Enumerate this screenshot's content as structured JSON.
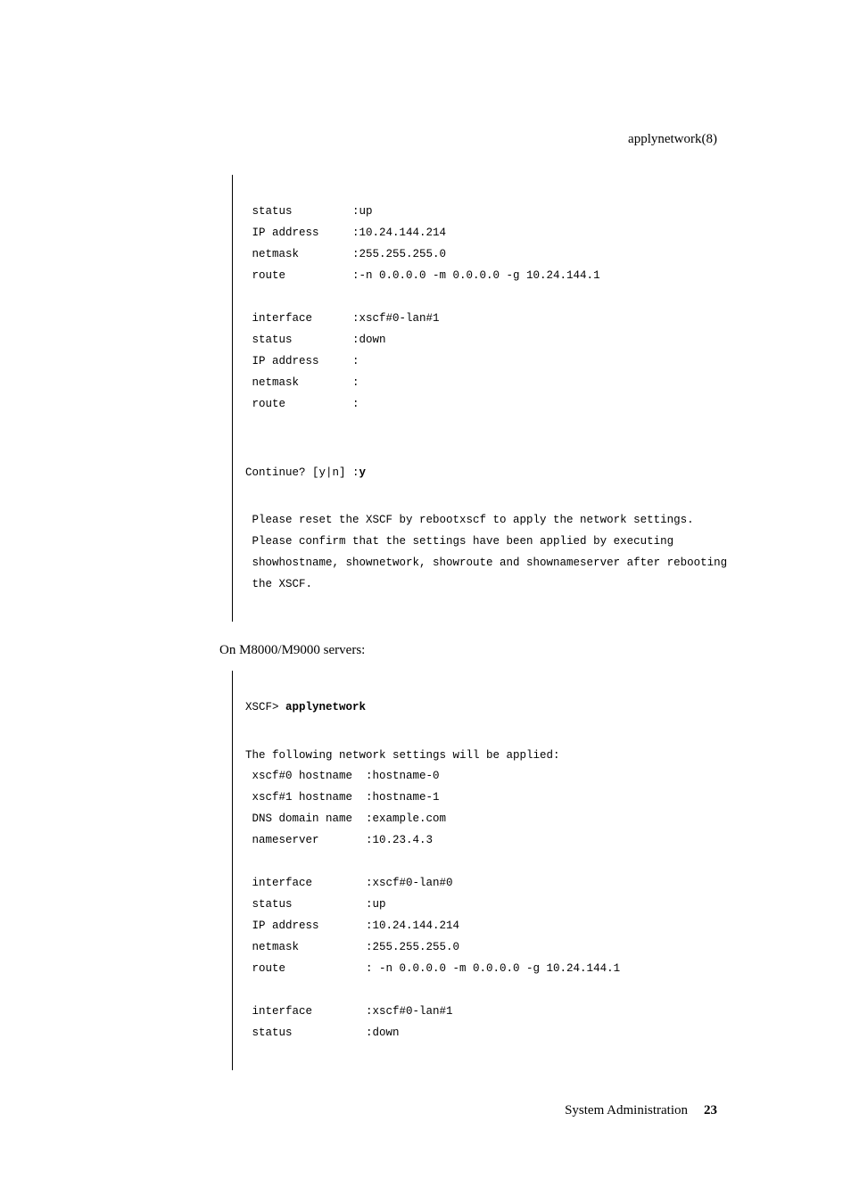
{
  "header": {
    "title": "applynetwork(8)"
  },
  "section1": {
    "lines": [
      " status         :up",
      " IP address     :10.24.144.214",
      " netmask        :255.255.255.0",
      " route          :-n 0.0.0.0 -m 0.0.0.0 -g 10.24.144.1",
      "",
      " interface      :xscf#0-lan#1",
      " status         :down",
      " IP address     :",
      " netmask        :",
      " route          :",
      ""
    ],
    "continue_prefix": "Continue? [y|n] :",
    "continue_answer": "y",
    "post_lines": [
      " Please reset the XSCF by rebootxscf to apply the network settings.",
      " Please confirm that the settings have been applied by executing",
      " showhostname, shownetwork, showroute and shownameserver after rebooting",
      " the XSCF."
    ]
  },
  "mid_text": "On M8000/M9000 servers:",
  "section2": {
    "prompt_prefix": "XSCF> ",
    "prompt_cmd": "applynetwork",
    "lines": [
      "The following network settings will be applied:",
      " xscf#0 hostname  :hostname-0",
      " xscf#1 hostname  :hostname-1",
      " DNS domain name  :example.com",
      " nameserver       :10.23.4.3",
      "",
      " interface        :xscf#0-lan#0",
      " status           :up",
      " IP address       :10.24.144.214",
      " netmask          :255.255.255.0",
      " route            : -n 0.0.0.0 -m 0.0.0.0 -g 10.24.144.1",
      "",
      " interface        :xscf#0-lan#1",
      " status           :down"
    ]
  },
  "footer": {
    "text": "System Administration",
    "page": "23"
  }
}
